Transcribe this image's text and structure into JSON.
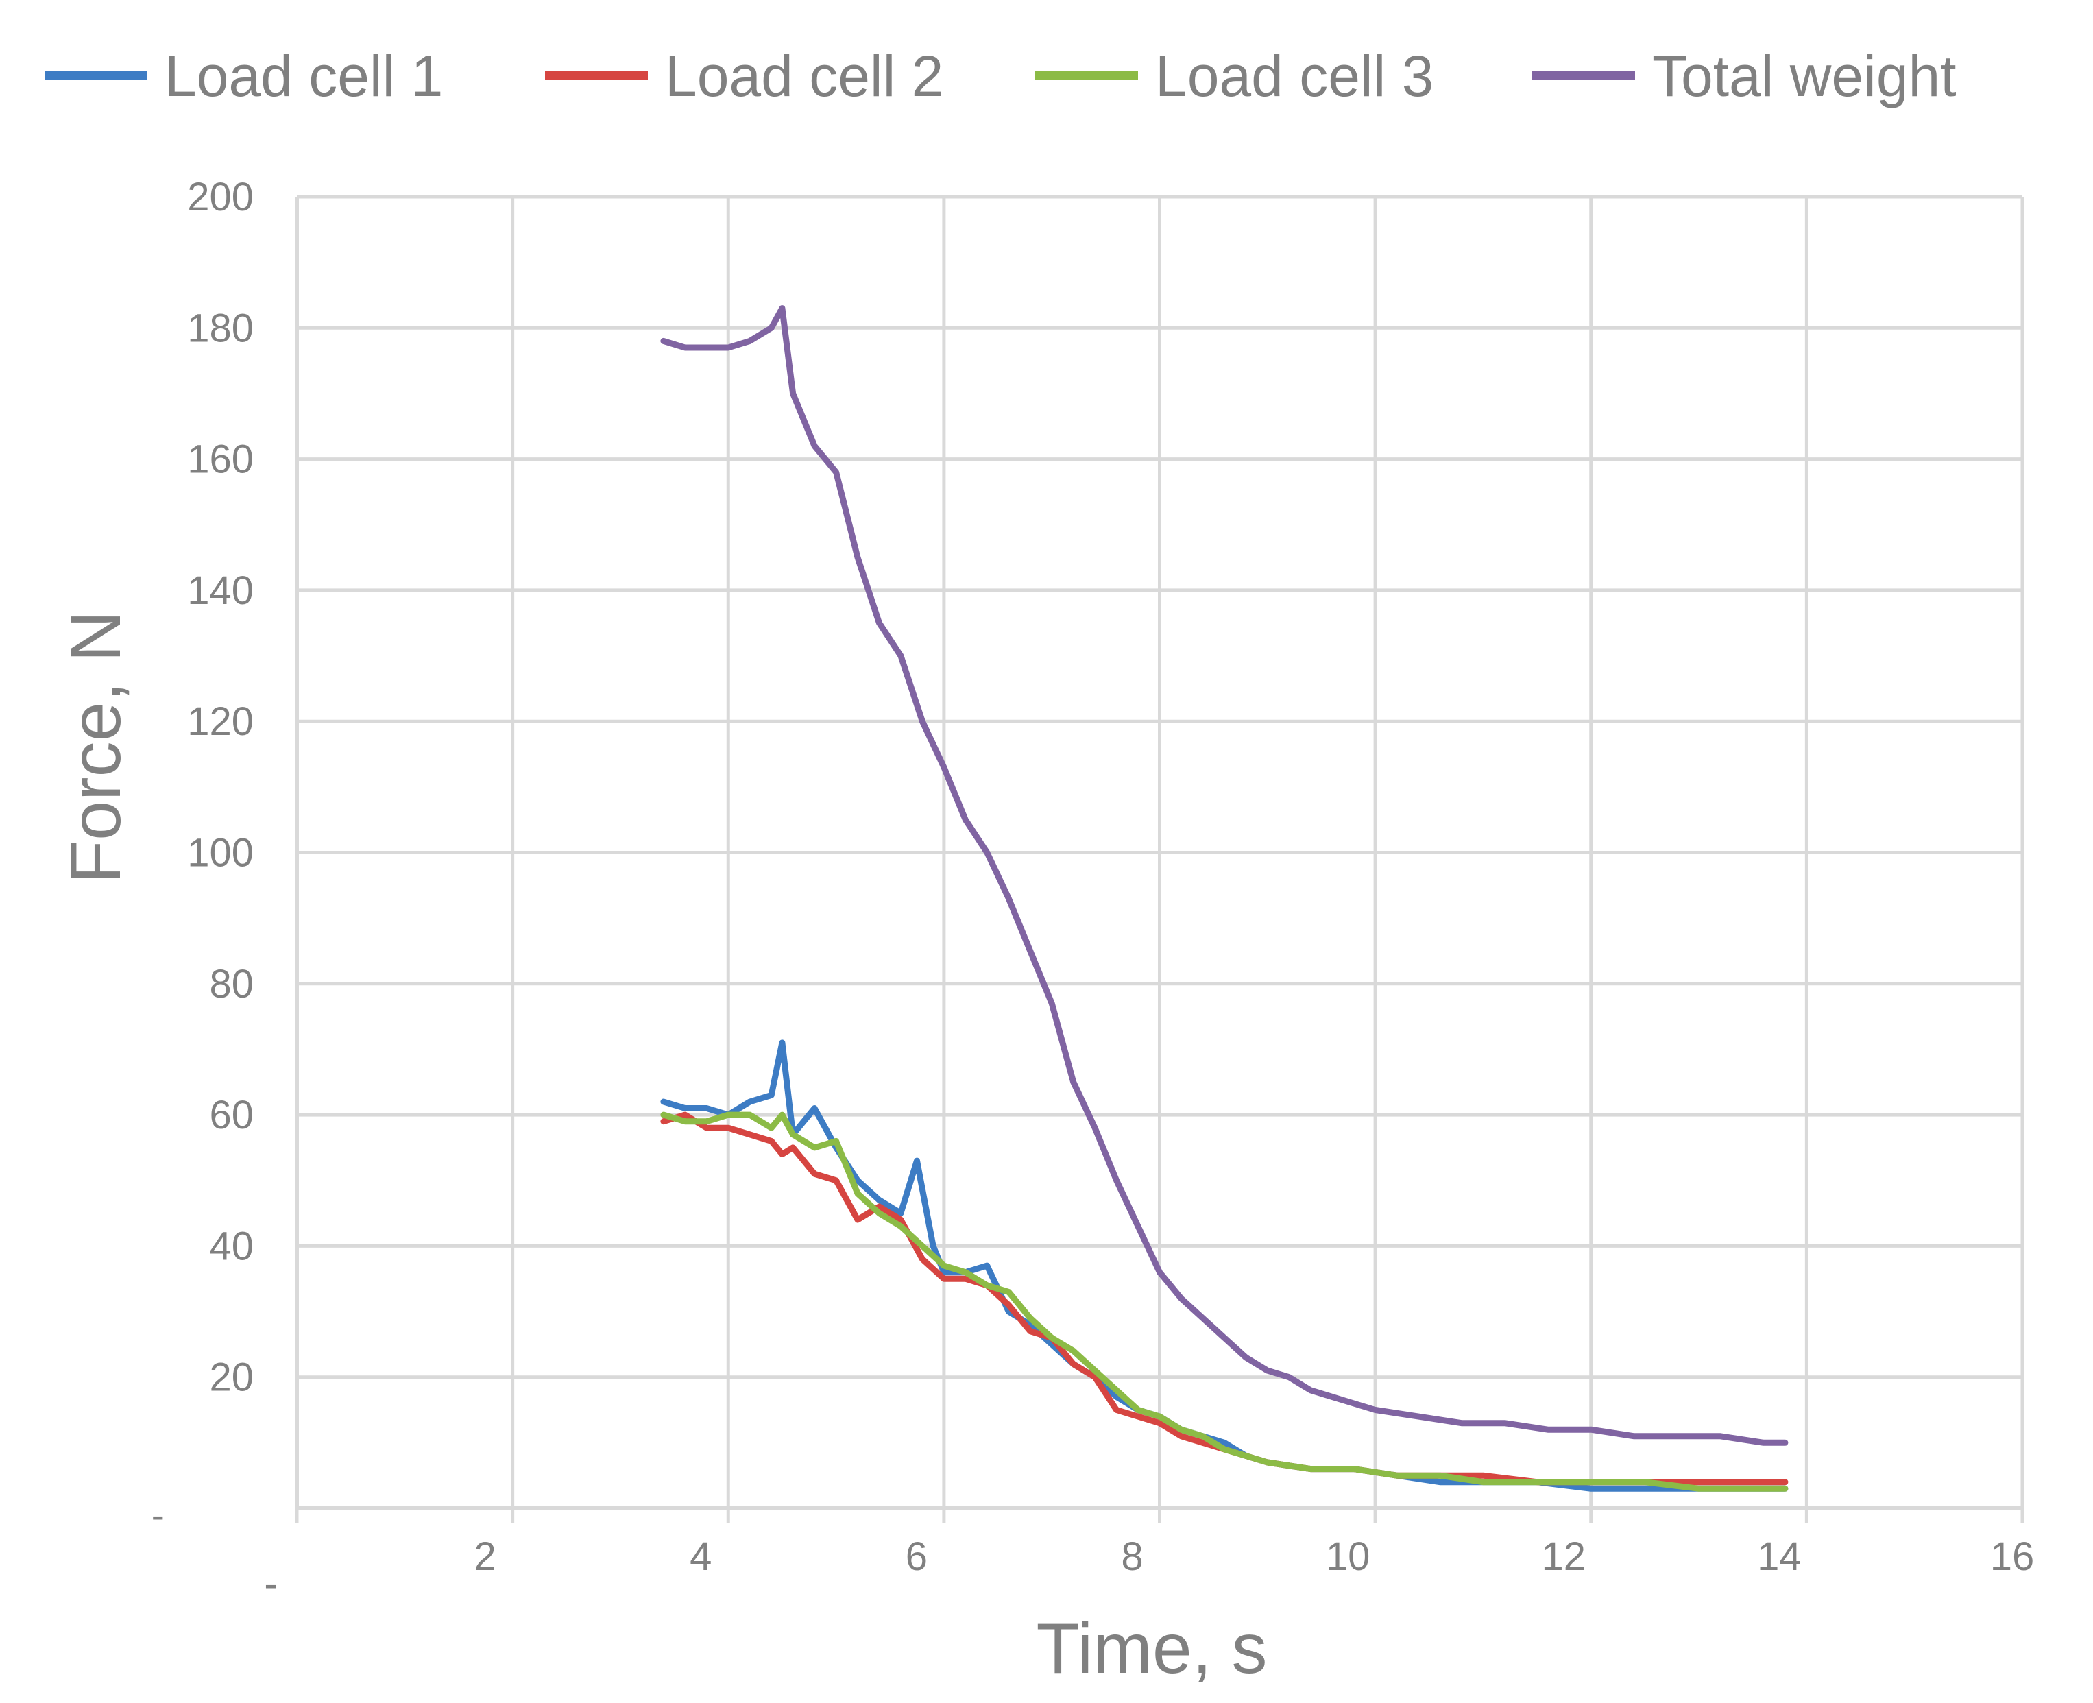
{
  "chart_data": {
    "type": "line",
    "xlabel": "Time, s",
    "ylabel": "Force, N",
    "xlim": [
      0,
      16
    ],
    "ylim": [
      0,
      200
    ],
    "x_ticks": [
      0,
      2,
      4,
      6,
      8,
      10,
      12,
      14,
      16
    ],
    "x_tick_labels": [
      "-",
      "2",
      "4",
      "6",
      "8",
      "10",
      "12",
      "14",
      "16"
    ],
    "y_ticks": [
      0,
      20,
      40,
      60,
      80,
      100,
      120,
      140,
      160,
      180,
      200
    ],
    "y_tick_labels": [
      "-",
      "20",
      "40",
      "60",
      "80",
      "100",
      "120",
      "140",
      "160",
      "180",
      "200"
    ],
    "grid": true,
    "legend_position": "top",
    "series": [
      {
        "name": "Load cell 1",
        "color": "#3D7CC4",
        "x": [
          3.4,
          3.6,
          3.8,
          4.0,
          4.2,
          4.4,
          4.5,
          4.6,
          4.8,
          5.0,
          5.2,
          5.4,
          5.6,
          5.75,
          5.9,
          6.0,
          6.2,
          6.4,
          6.6,
          6.8,
          7.0,
          7.2,
          7.4,
          7.6,
          7.8,
          8.0,
          8.2,
          8.4,
          8.6,
          8.8,
          9.0,
          9.4,
          9.8,
          10.2,
          10.6,
          11.0,
          11.5,
          12.0,
          12.5,
          13.0,
          13.5,
          13.8
        ],
        "y": [
          62,
          61,
          61,
          60,
          62,
          63,
          71,
          57,
          61,
          55,
          50,
          47,
          45,
          53,
          40,
          36,
          36,
          37,
          30,
          28,
          25,
          22,
          20,
          17,
          15,
          14,
          12,
          11,
          10,
          8,
          7,
          6,
          6,
          5,
          4,
          4,
          4,
          3,
          3,
          3,
          3,
          3
        ]
      },
      {
        "name": "Load cell 2",
        "color": "#D64541",
        "x": [
          3.4,
          3.6,
          3.8,
          4.0,
          4.2,
          4.4,
          4.5,
          4.6,
          4.8,
          5.0,
          5.2,
          5.4,
          5.6,
          5.8,
          6.0,
          6.2,
          6.4,
          6.6,
          6.8,
          7.0,
          7.2,
          7.4,
          7.6,
          7.8,
          8.0,
          8.2,
          8.4,
          8.6,
          8.8,
          9.0,
          9.4,
          9.8,
          10.2,
          10.6,
          11.0,
          11.5,
          12.0,
          12.5,
          13.0,
          13.5,
          13.8
        ],
        "y": [
          59,
          60,
          58,
          58,
          57,
          56,
          54,
          55,
          51,
          50,
          44,
          46,
          44,
          38,
          35,
          35,
          34,
          31,
          27,
          26,
          22,
          20,
          15,
          14,
          13,
          11,
          10,
          9,
          8,
          7,
          6,
          6,
          5,
          5,
          5,
          4,
          4,
          4,
          4,
          4,
          4
        ]
      },
      {
        "name": "Load cell 3",
        "color": "#8CBB46",
        "x": [
          3.4,
          3.6,
          3.8,
          4.0,
          4.2,
          4.4,
          4.5,
          4.6,
          4.8,
          5.0,
          5.2,
          5.4,
          5.6,
          5.8,
          6.0,
          6.2,
          6.4,
          6.6,
          6.8,
          7.0,
          7.2,
          7.4,
          7.6,
          7.8,
          8.0,
          8.2,
          8.4,
          8.6,
          8.8,
          9.0,
          9.4,
          9.8,
          10.2,
          10.6,
          11.0,
          11.5,
          12.0,
          12.5,
          13.0,
          13.5,
          13.8
        ],
        "y": [
          60,
          59,
          59,
          60,
          60,
          58,
          60,
          57,
          55,
          56,
          48,
          45,
          43,
          40,
          37,
          36,
          34,
          33,
          29,
          26,
          24,
          21,
          18,
          15,
          14,
          12,
          11,
          9,
          8,
          7,
          6,
          6,
          5,
          5,
          4,
          4,
          4,
          4,
          3,
          3,
          3
        ]
      },
      {
        "name": "Total weight",
        "color": "#8064A2",
        "x": [
          3.4,
          3.6,
          3.8,
          4.0,
          4.2,
          4.4,
          4.5,
          4.6,
          4.8,
          5.0,
          5.2,
          5.4,
          5.6,
          5.8,
          6.0,
          6.2,
          6.4,
          6.6,
          6.8,
          7.0,
          7.2,
          7.4,
          7.6,
          7.8,
          8.0,
          8.2,
          8.4,
          8.6,
          8.8,
          9.0,
          9.2,
          9.4,
          9.6,
          9.8,
          10.0,
          10.4,
          10.8,
          11.2,
          11.6,
          12.0,
          12.4,
          12.8,
          13.2,
          13.6,
          13.8
        ],
        "y": [
          178,
          177,
          177,
          177,
          178,
          180,
          183,
          170,
          162,
          158,
          145,
          135,
          130,
          120,
          113,
          105,
          100,
          93,
          85,
          77,
          65,
          58,
          50,
          43,
          36,
          32,
          29,
          26,
          23,
          21,
          20,
          18,
          17,
          16,
          15,
          14,
          13,
          13,
          12,
          12,
          11,
          11,
          11,
          10,
          10
        ]
      }
    ]
  }
}
